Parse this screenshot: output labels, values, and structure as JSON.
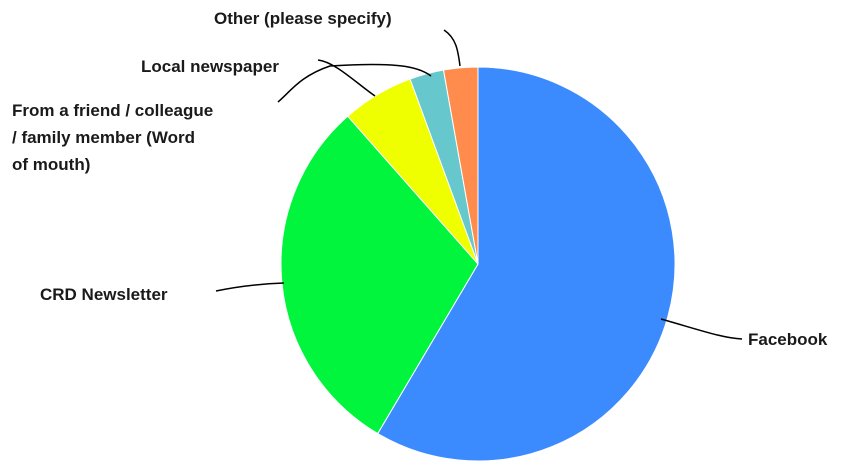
{
  "chart_data": {
    "type": "pie",
    "title": "",
    "legend": "none",
    "start_angle": "top",
    "direction": "clockwise",
    "slices": [
      {
        "label": "Facebook",
        "label_lines": [
          "Facebook"
        ],
        "value": 58.5,
        "color": "#3b8bff"
      },
      {
        "label": "CRD Newsletter",
        "label_lines": [
          "CRD Newsletter"
        ],
        "value": 30.0,
        "color": "#00f53c"
      },
      {
        "label": "From a friend / colleague / family member (Word of mouth)",
        "label_lines": [
          "From a friend / colleague",
          "/ family member (Word",
          "of mouth)"
        ],
        "value": 5.9,
        "color": "#efff00"
      },
      {
        "label": "Local newspaper",
        "label_lines": [
          "Local newspaper"
        ],
        "value": 2.8,
        "color": "#66c8cc"
      },
      {
        "label": "Other (please specify)",
        "label_lines": [
          "Other (please specify)"
        ],
        "value": 2.8,
        "color": "#ff8c4d"
      }
    ]
  }
}
